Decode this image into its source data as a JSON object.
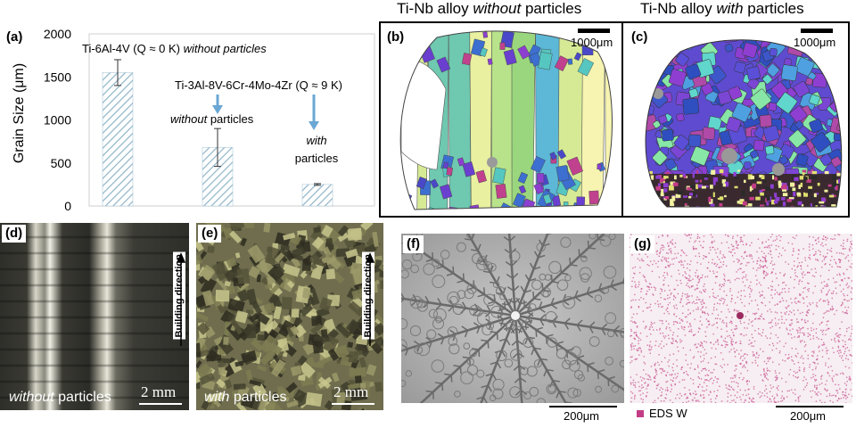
{
  "panels": {
    "a": "(a)",
    "b": "(b)",
    "c": "(c)",
    "d": "(d)",
    "e": "(e)",
    "f": "(f)",
    "g": "(g)"
  },
  "titles": {
    "left_prefix": "Ti-Nb alloy ",
    "left_em": "without",
    "left_suffix": " particles",
    "right_prefix": "Ti-Nb alloy ",
    "right_em": "with",
    "right_suffix": " particles"
  },
  "chart_data": {
    "type": "bar",
    "ylabel": "Grain Size (μm)",
    "ylim": [
      0,
      2000
    ],
    "yticks": [
      0,
      500,
      1000,
      1500,
      2000
    ],
    "categories": [
      "Ti-6Al-4V",
      "Ti-3Al-8V-6Cr-4Mo-4Zr without particles",
      "Ti-3Al-8V-6Cr-4Mo-4Zr with particles"
    ],
    "values": [
      1550,
      680,
      250
    ],
    "errors": [
      150,
      220,
      10
    ],
    "grid": false,
    "annotations": {
      "a1": "Ti-6Al-4V (Q ≈ 0 K)",
      "a1_em": "without particles",
      "a2": "Ti-3Al-8V-6Cr-4Mo-4Zr (Q ≈ 9 K)",
      "a3_em": "without",
      "a3": "particles",
      "a4_em": "with",
      "a4": "particles"
    },
    "colors": {
      "bar": "#8fb4c8",
      "arrow": "#6aa7d4"
    }
  },
  "scales": {
    "b": "1000μm",
    "c": "1000μm",
    "d": "2 mm",
    "e": "2 mm",
    "f": "200μm",
    "g": "200μm"
  },
  "captions": {
    "d_em": "without",
    "d": " particles",
    "e_em": "with",
    "e": " particles",
    "building_direction": "Building direction",
    "eds": "EDS W"
  }
}
